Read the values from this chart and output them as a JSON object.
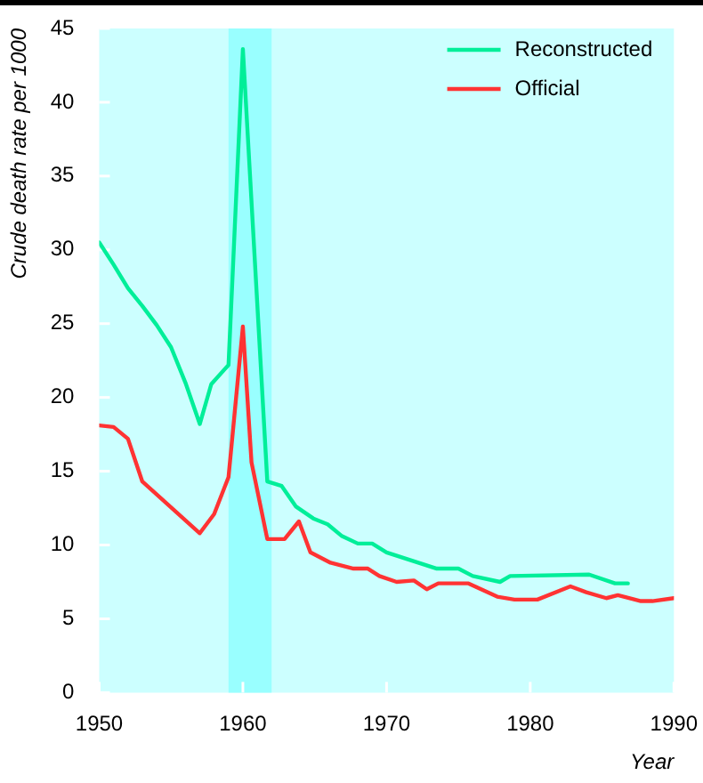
{
  "chart_data": {
    "type": "line",
    "xlabel": "Year",
    "ylabel": "Crude death rate per 1000",
    "xlim": [
      1950,
      1990
    ],
    "xticks": [
      1950,
      1960,
      1970,
      1980,
      1990
    ],
    "ylim": [
      0,
      45
    ],
    "yticks": [
      0,
      5,
      10,
      15,
      20,
      25,
      30,
      35,
      40,
      45
    ],
    "legend": "top right",
    "marker": "none",
    "line_style": "solid",
    "bands": [
      {
        "axis": "x",
        "from": 1959,
        "to": 1962,
        "color": "#99ffff"
      }
    ],
    "series": [
      {
        "name": "Reconstructed",
        "color": "#00ee99",
        "x": [
          1950,
          1951,
          1952,
          1953,
          1954,
          1955,
          1956,
          1957,
          1957.8,
          1959,
          1960,
          1961.7,
          1962.7,
          1963.7,
          1964.9,
          1965.9,
          1966.9,
          1968,
          1969,
          1970,
          1973.5,
          1975,
          1976,
          1977.9,
          1978.6,
          1984.1,
          1985.9,
          1986.8
        ],
        "values": [
          30.5,
          29,
          27.4,
          26.2,
          24.9,
          23.4,
          21,
          18.2,
          20.9,
          22.2,
          43.6,
          14.3,
          14.0,
          12.6,
          11.8,
          11.4,
          10.6,
          10.1,
          10.1,
          9.5,
          8.4,
          8.4,
          7.9,
          7.5,
          7.9,
          8.0,
          7.4,
          7.4
        ]
      },
      {
        "name": "Official",
        "color": "#ff3333",
        "x": [
          1950,
          1951,
          1952,
          1953,
          1957,
          1958,
          1959,
          1960,
          1960.6,
          1961.7,
          1962.9,
          1963.9,
          1964.7,
          1966.1,
          1967.7,
          1968.7,
          1969.5,
          1970.7,
          1971.9,
          1972.8,
          1973.6,
          1975.7,
          1977.7,
          1978.9,
          1980.5,
          1982.8,
          1983.9,
          1985.3,
          1986.1,
          1987.7,
          1988.5,
          1990
        ],
        "values": [
          18.1,
          18.0,
          17.2,
          14.3,
          10.8,
          12.1,
          14.6,
          24.8,
          15.6,
          10.4,
          10.4,
          11.6,
          9.5,
          8.8,
          8.4,
          8.4,
          7.9,
          7.5,
          7.6,
          7.0,
          7.4,
          7.4,
          6.5,
          6.3,
          6.3,
          7.2,
          6.8,
          6.4,
          6.6,
          6.2,
          6.2,
          6.4
        ]
      }
    ]
  }
}
